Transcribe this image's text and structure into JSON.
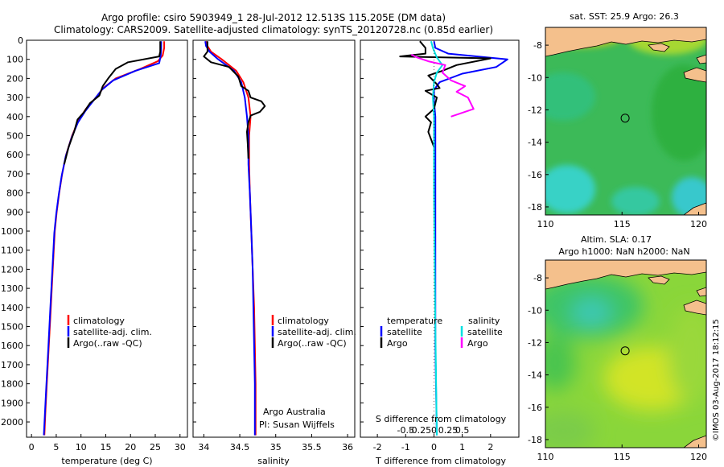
{
  "header": {
    "title_line1": "Argo profile: csiro 5903949_1 28-Jul-2012 12.513S 115.205E (DM data)",
    "title_line2": "Climatology: CARS2009. Satellite-adjusted climatology: synTS_20120728.nc (0.85d earlier)"
  },
  "colors": {
    "climatology": "#ff0000",
    "satellite": "#0000ff",
    "argo": "#000000",
    "sal_satellite": "#00e0e0",
    "sal_argo": "#ff00ff",
    "land": "#f4c08c"
  },
  "chart_data": [
    {
      "id": "temperature",
      "type": "line",
      "xlabel": "temperature (deg C)",
      "ylabel": "",
      "xlim": [
        -1,
        31.5
      ],
      "ylim": [
        0,
        2080
      ],
      "xticks": [
        0,
        5,
        10,
        15,
        20,
        25,
        30
      ],
      "yticks": [
        0,
        100,
        200,
        300,
        400,
        500,
        600,
        700,
        800,
        900,
        1000,
        1100,
        1200,
        1300,
        1400,
        1500,
        1600,
        1700,
        1800,
        1900,
        2000
      ],
      "legend": [
        "climatology",
        "satellite-adj. clim.",
        "Argo(..raw -QC)"
      ],
      "series": [
        {
          "name": "climatology",
          "color": "#ff0000",
          "points": [
            [
              26.8,
              5
            ],
            [
              26.8,
              40
            ],
            [
              26.5,
              80
            ],
            [
              25.5,
              110
            ],
            [
              22,
              150
            ],
            [
              17,
              200
            ],
            [
              14.5,
              250
            ],
            [
              13,
              300
            ],
            [
              11,
              360
            ],
            [
              9.5,
              420
            ],
            [
              8.2,
              500
            ],
            [
              7,
              600
            ],
            [
              6.2,
              700
            ],
            [
              5.6,
              800
            ],
            [
              5.1,
              900
            ],
            [
              4.7,
              1000
            ],
            [
              4.3,
              1200
            ],
            [
              3.9,
              1400
            ],
            [
              3.5,
              1600
            ],
            [
              3.1,
              1800
            ],
            [
              2.8,
              1950
            ],
            [
              2.6,
              2070
            ]
          ]
        },
        {
          "name": "satellite-adj. clim.",
          "color": "#0000ff",
          "points": [
            [
              26.2,
              5
            ],
            [
              26.2,
              40
            ],
            [
              26.1,
              80
            ],
            [
              25.8,
              120
            ],
            [
              21,
              160
            ],
            [
              16.5,
              210
            ],
            [
              14.2,
              260
            ],
            [
              12.7,
              310
            ],
            [
              10.9,
              370
            ],
            [
              9.4,
              430
            ],
            [
              8.1,
              510
            ],
            [
              6.9,
              610
            ],
            [
              6.1,
              710
            ],
            [
              5.5,
              810
            ],
            [
              5.0,
              910
            ],
            [
              4.6,
              1010
            ],
            [
              4.2,
              1210
            ],
            [
              3.8,
              1410
            ],
            [
              3.4,
              1610
            ],
            [
              3.0,
              1810
            ],
            [
              2.7,
              1960
            ],
            [
              2.5,
              2070
            ]
          ]
        },
        {
          "name": "Argo(..raw -QC)",
          "color": "#000000",
          "points": [
            [
              26.0,
              5
            ],
            [
              26.0,
              60
            ],
            [
              25.8,
              85
            ],
            [
              19.5,
              115
            ],
            [
              17,
              150
            ],
            [
              15.5,
              200
            ],
            [
              14.4,
              240
            ],
            [
              13.7,
              290
            ],
            [
              11.8,
              330
            ],
            [
              10.5,
              380
            ],
            [
              9.3,
              415
            ],
            [
              8.6,
              480
            ],
            [
              7.5,
              560
            ],
            [
              6.6,
              650
            ]
          ]
        }
      ]
    },
    {
      "id": "salinity",
      "type": "line",
      "xlabel": "salinity",
      "xlim": [
        33.85,
        36.1
      ],
      "ylim": [
        0,
        2080
      ],
      "xticks": [
        34,
        34.5,
        35,
        35.5,
        36
      ],
      "legend": [
        "climatology",
        "satellite-adj. clim.",
        "Argo(..raw -QC)"
      ],
      "notes": [
        "Argo Australia",
        "PI: Susan Wijffels"
      ],
      "series": [
        {
          "name": "climatology",
          "color": "#ff0000",
          "points": [
            [
              34.03,
              5
            ],
            [
              34.05,
              30
            ],
            [
              34.1,
              60
            ],
            [
              34.25,
              100
            ],
            [
              34.45,
              160
            ],
            [
              34.55,
              220
            ],
            [
              34.62,
              300
            ],
            [
              34.65,
              400
            ],
            [
              34.63,
              500
            ],
            [
              34.63,
              650
            ],
            [
              34.64,
              800
            ],
            [
              34.66,
              1000
            ],
            [
              34.68,
              1200
            ],
            [
              34.7,
              1400
            ],
            [
              34.71,
              1600
            ],
            [
              34.72,
              1800
            ],
            [
              34.72,
              2070
            ]
          ]
        },
        {
          "name": "satellite-adj. clim.",
          "color": "#0000ff",
          "points": [
            [
              34.02,
              5
            ],
            [
              34.03,
              30
            ],
            [
              34.08,
              60
            ],
            [
              34.2,
              100
            ],
            [
              34.42,
              160
            ],
            [
              34.52,
              220
            ],
            [
              34.57,
              300
            ],
            [
              34.6,
              400
            ],
            [
              34.62,
              500
            ],
            [
              34.62,
              650
            ],
            [
              34.64,
              800
            ],
            [
              34.66,
              1000
            ],
            [
              34.68,
              1200
            ],
            [
              34.69,
              1400
            ],
            [
              34.7,
              1600
            ],
            [
              34.71,
              1800
            ],
            [
              34.71,
              2070
            ]
          ]
        },
        {
          "name": "Argo(..raw -QC)",
          "color": "#000000",
          "points": [
            [
              34.05,
              5
            ],
            [
              34.05,
              60
            ],
            [
              34.0,
              85
            ],
            [
              34.1,
              115
            ],
            [
              34.35,
              140
            ],
            [
              34.48,
              190
            ],
            [
              34.52,
              240
            ],
            [
              34.62,
              265
            ],
            [
              34.65,
              300
            ],
            [
              34.8,
              320
            ],
            [
              34.85,
              345
            ],
            [
              34.78,
              375
            ],
            [
              34.65,
              395
            ],
            [
              34.62,
              430
            ],
            [
              34.6,
              480
            ],
            [
              34.61,
              540
            ],
            [
              34.62,
              620
            ]
          ]
        }
      ]
    },
    {
      "id": "differences",
      "type": "line",
      "xlabel": "T difference from climatology",
      "xlabel2": "S difference from climatology",
      "xlim": [
        -2.6,
        3.0
      ],
      "ylim": [
        0,
        2080
      ],
      "xticks": [
        -2,
        -1,
        0,
        1,
        2
      ],
      "xticks_salinity": [
        -0.5,
        -0.25,
        0,
        0.25,
        0.5
      ],
      "legend": {
        "temperature_heading": "temperature",
        "salinity_heading": "salinity",
        "satellite": "satellite",
        "argo": "Argo"
      },
      "series": [
        {
          "name": "temperature satellite",
          "color": "#0000ff",
          "points": [
            [
              0,
              5
            ],
            [
              0.05,
              40
            ],
            [
              0.5,
              70
            ],
            [
              2.6,
              100
            ],
            [
              2.2,
              140
            ],
            [
              1.0,
              175
            ],
            [
              0.2,
              220
            ],
            [
              0.0,
              260
            ],
            [
              0.0,
              320
            ],
            [
              0.05,
              400
            ],
            [
              0.05,
              700
            ],
            [
              0.05,
              1200
            ],
            [
              0.05,
              1600
            ],
            [
              0.1,
              2070
            ]
          ]
        },
        {
          "name": "temperature Argo",
          "color": "#000000",
          "points": [
            [
              -0.5,
              5
            ],
            [
              -0.3,
              40
            ],
            [
              -0.3,
              70
            ],
            [
              -1.2,
              85
            ],
            [
              2.0,
              95
            ],
            [
              0.8,
              130
            ],
            [
              0.3,
              160
            ],
            [
              -0.2,
              185
            ],
            [
              0.1,
              230
            ],
            [
              0.2,
              250
            ],
            [
              -0.3,
              265
            ],
            [
              0.1,
              300
            ],
            [
              0.0,
              360
            ],
            [
              -0.3,
              400
            ],
            [
              -0.1,
              430
            ],
            [
              -0.2,
              480
            ],
            [
              0.0,
              560
            ],
            [
              0.0,
              650
            ]
          ]
        },
        {
          "name": "salinity satellite",
          "color": "#00e0e0",
          "points": [
            [
              -0.05,
              5
            ],
            [
              -0.02,
              40
            ],
            [
              0.05,
              90
            ],
            [
              0.15,
              130
            ],
            [
              0.05,
              170
            ],
            [
              0.0,
              220
            ],
            [
              -0.02,
              300
            ],
            [
              0.0,
              400
            ],
            [
              0.0,
              800
            ],
            [
              0.02,
              1400
            ],
            [
              0.05,
              2070
            ]
          ]
        },
        {
          "name": "salinity Argo",
          "color": "#ff00ff",
          "points": [
            [
              -0.4,
              75
            ],
            [
              -0.3,
              90
            ],
            [
              -0.1,
              110
            ],
            [
              0.2,
              130
            ],
            [
              0.15,
              170
            ],
            [
              0.3,
              210
            ],
            [
              0.55,
              240
            ],
            [
              0.4,
              270
            ],
            [
              0.6,
              300
            ],
            [
              0.7,
              360
            ],
            [
              0.3,
              400
            ]
          ]
        }
      ]
    }
  ],
  "maps": [
    {
      "id": "sst_map",
      "title": "sat. SST: 25.9 Argo: 26.3",
      "xticks": [
        110,
        115,
        120
      ],
      "yticks": [
        -8,
        -10,
        -12,
        -14,
        -16,
        -18
      ],
      "xlim": [
        110,
        120.5
      ],
      "ylim": [
        -18.5,
        -6.9
      ],
      "float_lon": 115.205,
      "float_lat": -12.513
    },
    {
      "id": "sla_map",
      "title_line1": "Altim. SLA: 0.17",
      "title_line2": "Argo h1000: NaN h2000: NaN",
      "xticks": [
        110,
        115,
        120
      ],
      "yticks": [
        -8,
        -10,
        -12,
        -14,
        -16,
        -18
      ],
      "xlim": [
        110,
        120.5
      ],
      "ylim": [
        -18.5,
        -6.9
      ],
      "float_lon": 115.205,
      "float_lat": -12.513
    }
  ],
  "credit": "©IMOS 03-Aug-2017 18:12:15"
}
